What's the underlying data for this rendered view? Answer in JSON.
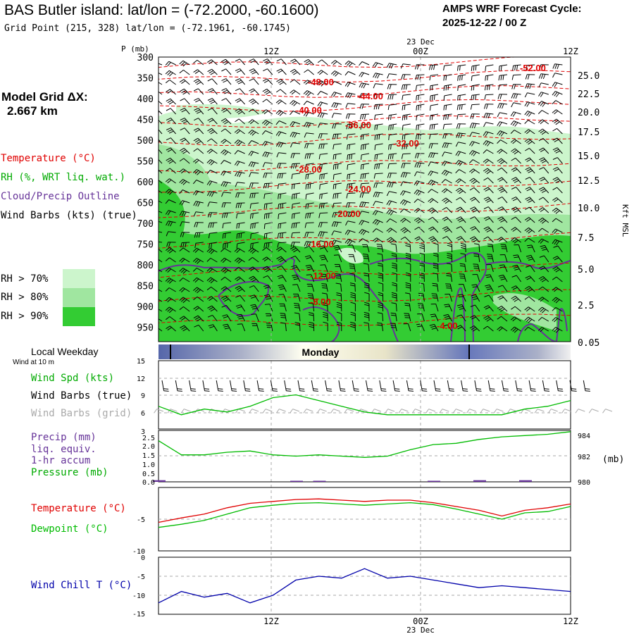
{
  "header": {
    "title": "BAS Butler island:  lat/lon = (-72.2000, -60.1600)",
    "subtitle": "Grid Point (215, 328) lat/lon = (-72.1961, -60.1745)",
    "cycle_line1": "AMPS WRF Forecast Cycle:",
    "cycle_line2": "2025-12-22 / 00  Z"
  },
  "model_grid": {
    "label": "Model Grid ΔX:",
    "value": "2.667 km"
  },
  "time_axis": {
    "top_date": "23 Dec",
    "bottom_date": "23 Dec",
    "labels": [
      "12Z",
      "00Z",
      "12Z"
    ]
  },
  "legend": {
    "temperature": "Temperature (°C)",
    "rh": "RH (%, WRT liq. wat.)",
    "cloud": "Cloud/Precip Outline",
    "wind": "Wind Barbs (kts) (true)",
    "rh70": "RH > 70%",
    "rh80": "RH > 80%",
    "rh90": "RH > 90%"
  },
  "colors": {
    "rh70": "#ccf5cc",
    "rh80": "#a0e6a0",
    "rh90": "#33cc33",
    "temperature": "#e00000",
    "cloud_outline": "#663399",
    "wind_chill": "#0000aa",
    "dewpoint": "#00bb00"
  },
  "chart_data": [
    {
      "type": "heatmap",
      "title": "",
      "ylabel": "P (mb)",
      "ylabel_right": "Kft MSL",
      "y_ticks": [
        300,
        350,
        400,
        450,
        500,
        550,
        600,
        650,
        700,
        750,
        800,
        850,
        900,
        950
      ],
      "right_ticks": [
        "25.0",
        "22.5",
        "20.0",
        "17.5",
        "15.0",
        "12.5",
        "10.0",
        "7.5",
        "5.0",
        "2.5",
        "0.05"
      ],
      "isotherms": [
        {
          "label": "-52.00"
        },
        {
          "label": "-48.00"
        },
        {
          "label": "-44.00"
        },
        {
          "label": "-40.00"
        },
        {
          "label": "-36.00"
        },
        {
          "label": "-32.00"
        },
        {
          "label": "-28.00"
        },
        {
          "label": "-24.00"
        },
        {
          "label": "-20.00"
        },
        {
          "label": "-16.00"
        },
        {
          "label": "-12.00"
        },
        {
          "label": "-8.00"
        },
        {
          "label": "-4.00"
        }
      ]
    },
    {
      "type": "bar",
      "title": "Local Weekday",
      "categories": [
        "Monday"
      ]
    },
    {
      "type": "line",
      "title": "Wind at 10 m",
      "y_ticks": [
        3,
        6,
        9,
        12,
        15
      ],
      "series": [
        {
          "name": "Wind Spd (kts)",
          "values": [
            7,
            5.5,
            6.5,
            6,
            7,
            8.5,
            9,
            8,
            7,
            6,
            5.5,
            5.5,
            5.5,
            5.5,
            5.5,
            5.5,
            6.5,
            7,
            8
          ]
        }
      ],
      "legend": [
        "Wind Spd (kts)",
        "Wind Barbs (true)",
        "Wind Barbs (grid)"
      ]
    },
    {
      "type": "line",
      "title": "",
      "y_ticks_left": [
        "0.0",
        "0.5",
        "1.0",
        "1.5",
        "2.0",
        "2.5"
      ],
      "y_ticks_right": [
        "980",
        "982",
        "984"
      ],
      "right_unit": "(mb)",
      "series": [
        {
          "name": "Precip (mm) liq. equiv. 1-hr accum",
          "values": [
            0.08,
            0,
            0,
            0,
            0,
            0,
            0.05,
            0.05,
            0,
            0,
            0,
            0,
            0.05,
            0,
            0.08,
            0,
            0.08,
            0,
            0
          ]
        },
        {
          "name": "Pressure (mb)",
          "values": [
            983.2,
            982.1,
            982.1,
            982.3,
            982.4,
            982.1,
            982.0,
            982.1,
            982.0,
            981.9,
            982.0,
            982.5,
            982.9,
            983.0,
            983.3,
            983.5,
            983.6,
            983.7,
            983.9
          ]
        }
      ],
      "legend": [
        "Precip (mm)",
        "liq. equiv.",
        "1-hr accum",
        "Pressure (mb)"
      ]
    },
    {
      "type": "line",
      "title": "",
      "y_ticks": [
        "-5",
        "-10"
      ],
      "series": [
        {
          "name": "Temperature (°C)",
          "values": [
            -5.5,
            -4.8,
            -4.2,
            -3.2,
            -2.5,
            -2.2,
            -1.9,
            -1.8,
            -2.0,
            -2.2,
            -2.0,
            -2.0,
            -2.4,
            -3.0,
            -3.6,
            -4.5,
            -3.6,
            -3.2,
            -2.6
          ]
        },
        {
          "name": "Dewpoint (°C)",
          "values": [
            -6.3,
            -5.8,
            -5.2,
            -4.2,
            -3.2,
            -2.8,
            -2.5,
            -2.4,
            -2.6,
            -2.8,
            -2.6,
            -2.4,
            -2.7,
            -3.4,
            -4.2,
            -5.0,
            -4.0,
            -3.8,
            -3.0
          ]
        }
      ],
      "legend": [
        "Temperature (°C)",
        "Dewpoint (°C)"
      ]
    },
    {
      "type": "line",
      "title": "",
      "y_ticks": [
        "0",
        "-5",
        "-10",
        "-15"
      ],
      "series": [
        {
          "name": "Wind Chill T (°C)",
          "values": [
            -12,
            -9,
            -10.5,
            -9.5,
            -12,
            -10,
            -6,
            -5,
            -5.5,
            -3,
            -5.5,
            -5,
            -6,
            -7,
            -8,
            -7.5,
            -8,
            -8.5,
            -9
          ]
        }
      ],
      "legend": [
        "Wind Chill T (°C)"
      ]
    }
  ]
}
